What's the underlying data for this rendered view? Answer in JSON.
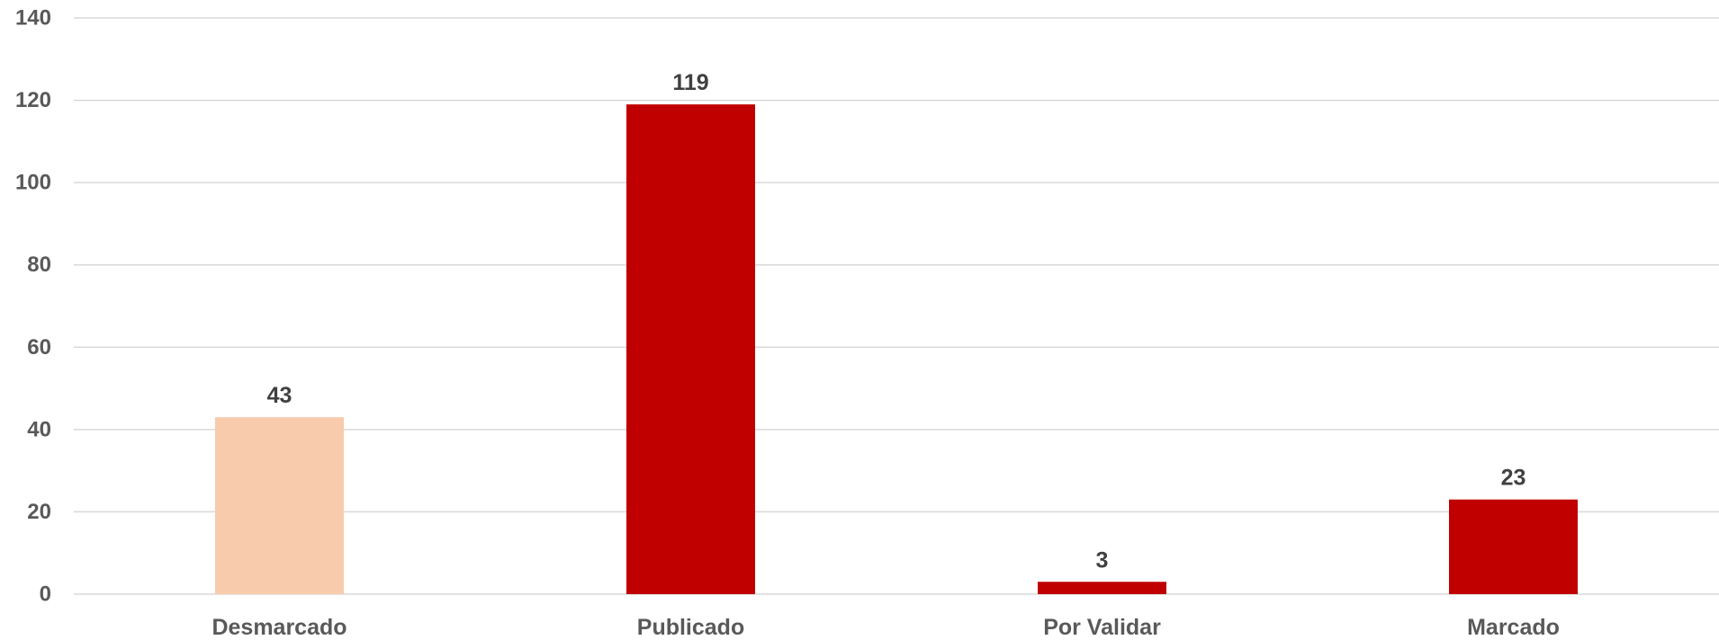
{
  "chart_data": {
    "type": "bar",
    "title": "",
    "xlabel": "",
    "ylabel": "",
    "categories": [
      "Desmarcado",
      "Publicado",
      "Por Validar",
      "Marcado"
    ],
    "values": [
      43,
      119,
      3,
      23
    ],
    "data_labels": [
      "43",
      "119",
      "3",
      "23"
    ],
    "bar_colors": [
      "#F8CBAD",
      "#C00000",
      "#C00000",
      "#C00000"
    ],
    "ylim": [
      0,
      140
    ],
    "yticks": [
      0,
      20,
      40,
      60,
      80,
      100,
      120,
      140
    ],
    "ytick_labels": [
      "0",
      "20",
      "40",
      "60",
      "80",
      "100",
      "120",
      "140"
    ],
    "grid": true,
    "legend": "none"
  }
}
